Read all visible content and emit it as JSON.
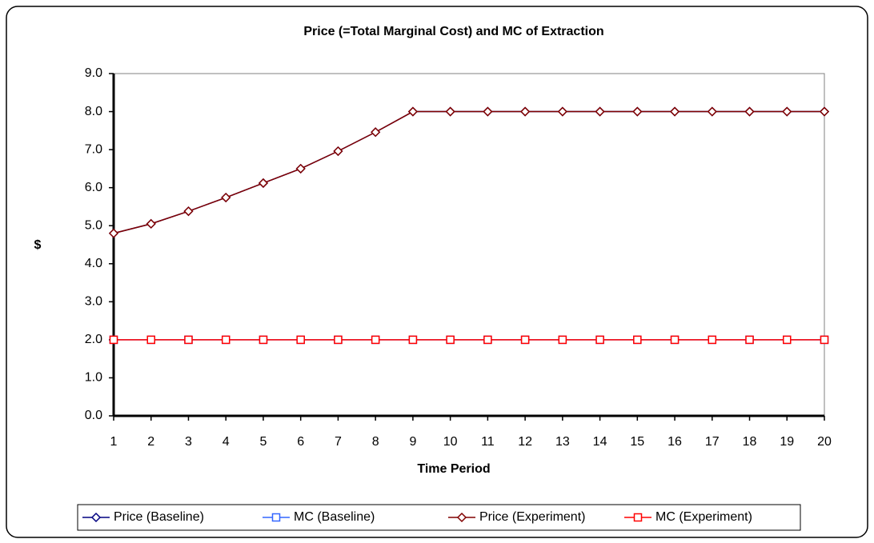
{
  "chart_data": {
    "type": "line",
    "title": "Price (=Total Marginal Cost) and MC of Extraction",
    "x_label": "Time Period",
    "y_label": "$",
    "categories": [
      "1",
      "2",
      "3",
      "4",
      "5",
      "6",
      "7",
      "8",
      "9",
      "10",
      "11",
      "12",
      "13",
      "14",
      "15",
      "16",
      "17",
      "18",
      "19",
      "20"
    ],
    "series": [
      {
        "name": "Price (Baseline)",
        "color": "#000080",
        "marker": "diamond",
        "values": [
          4.8,
          5.05,
          5.38,
          5.74,
          6.12,
          6.5,
          6.96,
          7.46,
          8.0,
          8.0,
          8.0,
          8.0,
          8.0,
          8.0,
          8.0,
          8.0,
          8.0,
          8.0,
          8.0,
          8.0
        ]
      },
      {
        "name": "MC (Baseline)",
        "color": "#3366ff",
        "marker": "square",
        "values": [
          2.0,
          2.0,
          2.0,
          2.0,
          2.0,
          2.0,
          2.0,
          2.0,
          2.0,
          2.0,
          2.0,
          2.0,
          2.0,
          2.0,
          2.0,
          2.0,
          2.0,
          2.0,
          2.0,
          2.0
        ]
      },
      {
        "name": "Price (Experiment)",
        "color": "#800000",
        "marker": "diamond",
        "values": [
          4.8,
          5.05,
          5.38,
          5.74,
          6.12,
          6.5,
          6.96,
          7.46,
          8.0,
          8.0,
          8.0,
          8.0,
          8.0,
          8.0,
          8.0,
          8.0,
          8.0,
          8.0,
          8.0,
          8.0
        ]
      },
      {
        "name": "MC (Experiment)",
        "color": "#ff0000",
        "marker": "square",
        "values": [
          2.0,
          2.0,
          2.0,
          2.0,
          2.0,
          2.0,
          2.0,
          2.0,
          2.0,
          2.0,
          2.0,
          2.0,
          2.0,
          2.0,
          2.0,
          2.0,
          2.0,
          2.0,
          2.0,
          2.0
        ]
      }
    ],
    "ylim": [
      0,
      9
    ],
    "yticks": [
      {
        "value": 0,
        "label": "0.0"
      },
      {
        "value": 1,
        "label": "1.0"
      },
      {
        "value": 2,
        "label": "2.0"
      },
      {
        "value": 3,
        "label": "3.0"
      },
      {
        "value": 4,
        "label": "4.0"
      },
      {
        "value": 5,
        "label": "5.0"
      },
      {
        "value": 6,
        "label": "6.0"
      },
      {
        "value": 7,
        "label": "7.0"
      },
      {
        "value": 8,
        "label": "8.0"
      },
      {
        "value": 9,
        "label": "9.0"
      }
    ],
    "grid": false,
    "legend": "bottom"
  }
}
